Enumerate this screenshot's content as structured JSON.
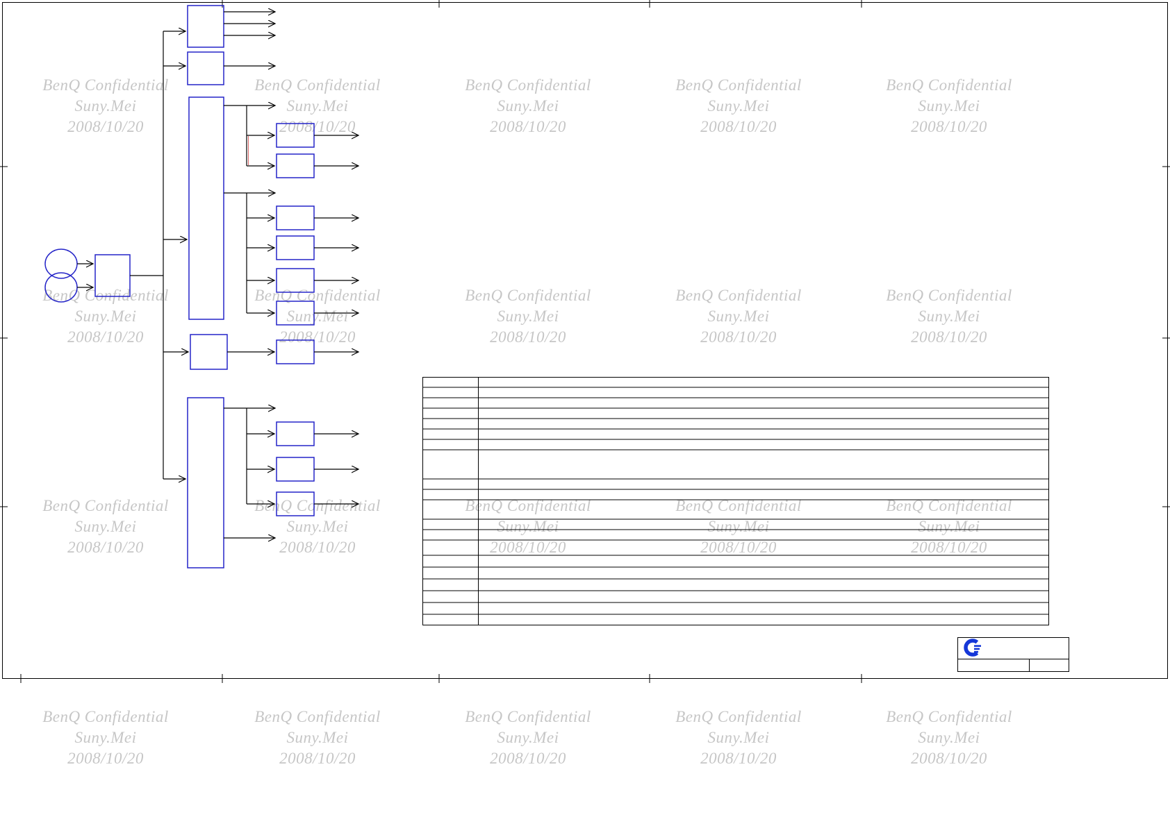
{
  "watermark": {
    "line1": "BenQ Confidential",
    "line2": "Suny.Mei",
    "line3": "2008/10/20"
  },
  "colors": {
    "block_outline": "#2424c8",
    "connector": "#000000",
    "watermark_text": "#c6c6c6",
    "logo_blue": "#1537d8",
    "highlight_red": "#cc3333"
  },
  "icons": {
    "logo": "compal-logo"
  }
}
